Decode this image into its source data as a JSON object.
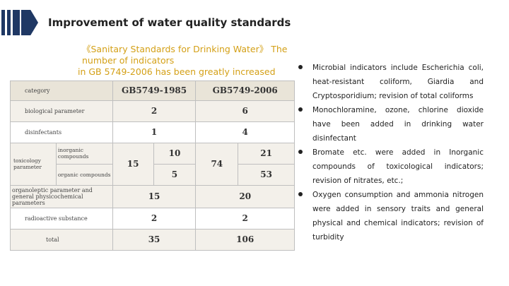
{
  "header": {
    "title": "Improvement of water quality standards"
  },
  "subtitle": {
    "line1": "《Sanitary Standards for Drinking Water》 The number of indicators",
    "line2": "in GB 5749-2006 has been greatly increased"
  },
  "table": {
    "head": {
      "category": "category",
      "col1985": "GB5749-1985",
      "col2006": "GB5749-2006"
    },
    "rows": {
      "bio": {
        "label": "biological parameter",
        "v1985": "2",
        "v2006": "6"
      },
      "dis": {
        "label": "disinfectants",
        "v1985": "1",
        "v2006": "4"
      },
      "tox": {
        "label": "toxicology parameter",
        "inorganic_label": "inorganic compounds",
        "organic_label": "organic compounds",
        "total1985": "15",
        "inorganic1985": "10",
        "organic1985": "5",
        "total2006": "74",
        "inorganic2006": "21",
        "organic2006": "53"
      },
      "org": {
        "label": "organoleptic parameter and general physicochemical parameters",
        "v1985": "15",
        "v2006": "20"
      },
      "rad": {
        "label": "radioactive substance",
        "v1985": "2",
        "v2006": "2"
      },
      "total": {
        "label": "total",
        "v1985": "35",
        "v2006": "106"
      }
    }
  },
  "bullets": [
    "Microbial indicators include Escherichia coli, heat-resistant coliform, Giardia and Cryptosporidium; revision of total coliforms",
    "Monochloramine, ozone, chlorine dioxide have been added in drinking water disinfectant",
    "Bromate etc. were added in Inorganic compounds of toxicological indicators; revision of nitrates, etc.;",
    "Oxygen consumption and ammonia nitrogen were added in sensory traits and general physical and chemical indicators; revision of turbidity"
  ],
  "colors": {
    "accent": "#1f3864",
    "subtitle": "#d4a017",
    "table_head": "#e9e4d8",
    "table_alt": "#f3f0ea"
  }
}
